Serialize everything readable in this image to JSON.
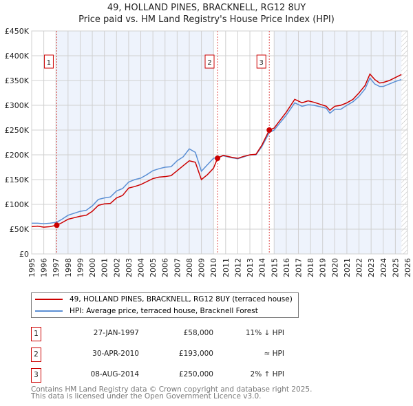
{
  "chart_data": {
    "type": "line",
    "title": "49, HOLLAND PINES, BRACKNELL, RG12 8UY",
    "subtitle": "Price paid vs. HM Land Registry's House Price Index (HPI)",
    "xlim": [
      1995,
      2026
    ],
    "ylim": [
      0,
      450000
    ],
    "x_ticks": [
      "1995",
      "1996",
      "1997",
      "1998",
      "1999",
      "2000",
      "2001",
      "2002",
      "2003",
      "2004",
      "2005",
      "2006",
      "2007",
      "2008",
      "2009",
      "2010",
      "2011",
      "2012",
      "2013",
      "2014",
      "2015",
      "2016",
      "2017",
      "2018",
      "2019",
      "2020",
      "2021",
      "2022",
      "2023",
      "2024",
      "2025",
      "2026"
    ],
    "y_ticks": [
      {
        "v": 0,
        "label": "£0"
      },
      {
        "v": 50000,
        "label": "£50K"
      },
      {
        "v": 100000,
        "label": "£100K"
      },
      {
        "v": 150000,
        "label": "£150K"
      },
      {
        "v": 200000,
        "label": "£200K"
      },
      {
        "v": 250000,
        "label": "£250K"
      },
      {
        "v": 300000,
        "label": "£300K"
      },
      {
        "v": 350000,
        "label": "£350K"
      },
      {
        "v": 400000,
        "label": "£400K"
      },
      {
        "v": 450000,
        "label": "£450K"
      }
    ],
    "grid": true,
    "series": [
      {
        "name": "49, HOLLAND PINES, BRACKNELL, RG12 8UY (terraced house)",
        "color": "#cc0000",
        "x": [
          1995,
          1995.5,
          1996,
          1996.5,
          1997.07,
          1997.5,
          1998,
          1998.5,
          1999,
          1999.5,
          2000,
          2000.5,
          2001,
          2001.5,
          2002,
          2002.5,
          2003,
          2003.5,
          2004,
          2004.5,
          2005,
          2005.5,
          2006,
          2006.5,
          2007,
          2007.5,
          2008,
          2008.5,
          2009,
          2009.5,
          2010,
          2010.33,
          2010.8,
          2011.5,
          2012,
          2012.5,
          2013,
          2013.5,
          2014,
          2014.6,
          2015,
          2015.5,
          2016,
          2016.7,
          2017.3,
          2017.8,
          2018.3,
          2018.8,
          2019.3,
          2019.6,
          2020,
          2020.5,
          2021,
          2021.5,
          2022,
          2022.5,
          2022.9,
          2023.3,
          2023.7,
          2024,
          2024.5,
          2025,
          2025.5
        ],
        "y": [
          55000,
          56000,
          54000,
          55000,
          58000,
          63000,
          70000,
          73000,
          76000,
          78000,
          86000,
          98000,
          101000,
          102000,
          113000,
          118000,
          133000,
          136000,
          140000,
          146000,
          152000,
          155000,
          156000,
          158000,
          168000,
          178000,
          188000,
          185000,
          150000,
          160000,
          173000,
          193000,
          199000,
          195000,
          193000,
          197000,
          200000,
          201000,
          220000,
          250000,
          254000,
          270000,
          286000,
          312000,
          305000,
          309000,
          306000,
          302000,
          298000,
          290000,
          298000,
          300000,
          305000,
          312000,
          325000,
          340000,
          363000,
          352000,
          345000,
          346000,
          350000,
          356000,
          362000
        ]
      },
      {
        "name": "HPI: Average price, terraced house, Bracknell Forest",
        "color": "#5b8fd4",
        "x": [
          1995,
          1995.5,
          1996,
          1996.5,
          1997.07,
          1997.5,
          1998,
          1998.5,
          1999,
          1999.5,
          2000,
          2000.5,
          2001,
          2001.5,
          2002,
          2002.5,
          2003,
          2003.5,
          2004,
          2004.5,
          2005,
          2005.5,
          2006,
          2006.5,
          2007,
          2007.5,
          2008,
          2008.5,
          2009,
          2009.5,
          2010,
          2010.33,
          2010.8,
          2011.5,
          2012,
          2012.5,
          2013,
          2013.5,
          2014,
          2014.6,
          2015,
          2015.5,
          2016,
          2016.7,
          2017.3,
          2017.8,
          2018.3,
          2018.8,
          2019.3,
          2019.6,
          2020,
          2020.5,
          2021,
          2021.5,
          2022,
          2022.5,
          2022.9,
          2023.3,
          2023.7,
          2024,
          2024.5,
          2025,
          2025.5
        ],
        "y": [
          62000,
          62000,
          61000,
          62000,
          64000,
          70000,
          78000,
          82000,
          86000,
          88000,
          97000,
          110000,
          113000,
          115000,
          127000,
          132000,
          145000,
          150000,
          153000,
          160000,
          168000,
          172000,
          175000,
          176000,
          188000,
          196000,
          212000,
          205000,
          167000,
          180000,
          193000,
          195000,
          198000,
          194000,
          192000,
          196000,
          200000,
          200000,
          217000,
          245000,
          250000,
          265000,
          280000,
          305000,
          298000,
          301000,
          300000,
          297000,
          294000,
          284000,
          292000,
          292000,
          300000,
          307000,
          318000,
          333000,
          355000,
          343000,
          338000,
          338000,
          343000,
          348000,
          352000
        ]
      }
    ],
    "sales": [
      {
        "n": "1",
        "x": 1997.07,
        "y": 58000,
        "date": "27-JAN-1997",
        "price": "£58,000",
        "rel": "11% ↓ HPI"
      },
      {
        "n": "2",
        "x": 2010.33,
        "y": 193000,
        "date": "30-APR-2010",
        "price": "£193,000",
        "rel": "≈ HPI"
      },
      {
        "n": "3",
        "x": 2014.6,
        "y": 250000,
        "date": "08-AUG-2014",
        "price": "£250,000",
        "rel": "2% ↑ HPI"
      }
    ],
    "shaded_ranges": [
      [
        1997.07,
        2010.0
      ],
      [
        2015.0,
        2025.5
      ]
    ],
    "hatched_from": 2025.5,
    "legend_position": "below"
  },
  "footer": [
    "Contains HM Land Registry data © Crown copyright and database right 2025.",
    "This data is licensed under the Open Government Licence v3.0."
  ]
}
